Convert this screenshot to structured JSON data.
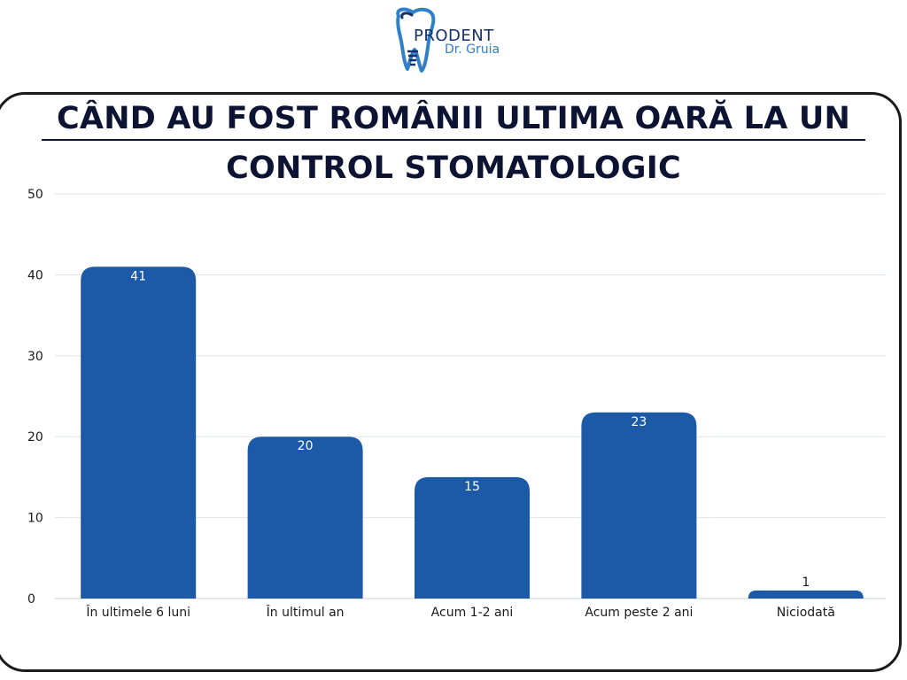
{
  "logo": {
    "name": "PRODENT",
    "subtitle": "Dr. Gruia"
  },
  "chart_data": {
    "type": "bar",
    "title_line1": "CÂND AU FOST ROMÂNII ULTIMA OARĂ LA UN",
    "title_line2": "CONTROL STOMATOLOGIC",
    "categories": [
      "În ultimele 6 luni",
      "În ultimul an",
      "Acum 1-2 ani",
      "Acum peste 2 ani",
      "Niciodată"
    ],
    "values": [
      41,
      20,
      15,
      23,
      1
    ],
    "xlabel": "",
    "ylabel": "",
    "ylim": [
      0,
      50
    ],
    "yticks": [
      0,
      10,
      20,
      30,
      40,
      50
    ],
    "grid": true,
    "legend": "none",
    "bar_color": "#1c5aa7",
    "value_label_color_inside": "#ffffff",
    "value_label_color_outside": "#1a1a1a"
  }
}
